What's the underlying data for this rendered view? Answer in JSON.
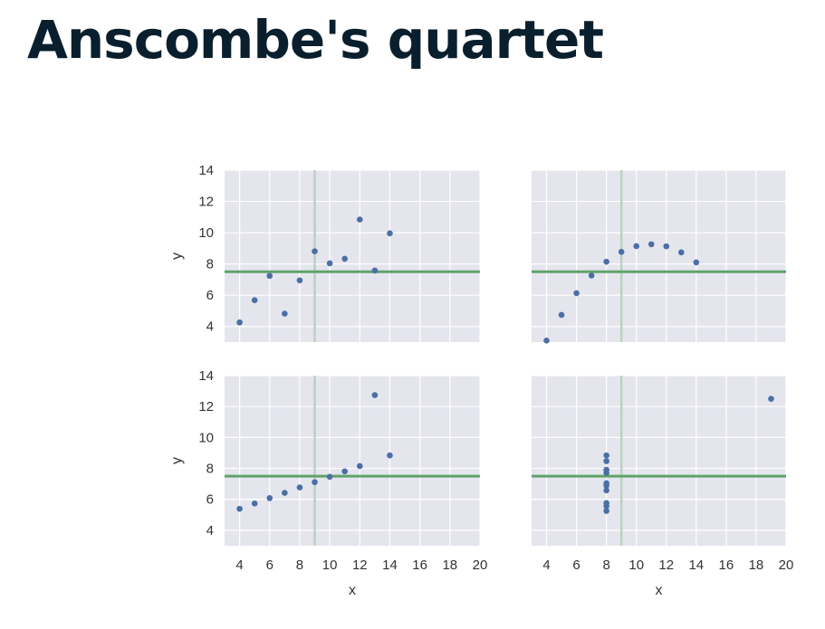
{
  "title": "Anscombe's quartet",
  "colors": {
    "panel_bg": "#e5e5ee",
    "grid": "#ffffff",
    "point": "#4a6fa5",
    "mean_y_line": "#5fa36a",
    "mean_x_line": "#b9d3bf",
    "title": "#0a1f2e",
    "tick_text": "#333333"
  },
  "chart_data": [
    {
      "type": "scatter",
      "panel": "top-left",
      "x": [
        10,
        8,
        13,
        9,
        11,
        14,
        6,
        4,
        12,
        7,
        5
      ],
      "y": [
        8.04,
        6.95,
        7.58,
        8.81,
        8.33,
        9.96,
        7.24,
        4.26,
        10.84,
        4.82,
        5.68
      ],
      "mean_x": 9,
      "mean_y": 7.5,
      "xlim": [
        3,
        20
      ],
      "ylim": [
        3,
        14
      ],
      "xticks": [],
      "yticks": [
        4,
        6,
        8,
        10,
        12,
        14
      ],
      "xlabel": "",
      "ylabel": "y",
      "grid": true
    },
    {
      "type": "scatter",
      "panel": "top-right",
      "x": [
        10,
        8,
        13,
        9,
        11,
        14,
        6,
        4,
        12,
        7,
        5
      ],
      "y": [
        9.14,
        8.14,
        8.74,
        8.77,
        9.26,
        8.1,
        6.13,
        3.1,
        9.13,
        7.26,
        4.74
      ],
      "mean_x": 9,
      "mean_y": 7.5,
      "xlim": [
        3,
        20
      ],
      "ylim": [
        3,
        14
      ],
      "xticks": [],
      "yticks": [],
      "xlabel": "",
      "ylabel": "",
      "grid": true
    },
    {
      "type": "scatter",
      "panel": "bottom-left",
      "x": [
        10,
        8,
        13,
        9,
        11,
        14,
        6,
        4,
        12,
        7,
        5
      ],
      "y": [
        7.46,
        6.77,
        12.74,
        7.11,
        7.81,
        8.84,
        6.08,
        5.39,
        8.15,
        6.42,
        5.73
      ],
      "mean_x": 9,
      "mean_y": 7.5,
      "xlim": [
        3,
        20
      ],
      "ylim": [
        3,
        14
      ],
      "xticks": [
        4,
        6,
        8,
        10,
        12,
        14,
        16,
        18,
        20
      ],
      "yticks": [
        4,
        6,
        8,
        10,
        12,
        14
      ],
      "xlabel": "x",
      "ylabel": "y",
      "grid": true
    },
    {
      "type": "scatter",
      "panel": "bottom-right",
      "x": [
        8,
        8,
        8,
        8,
        8,
        8,
        8,
        19,
        8,
        8,
        8
      ],
      "y": [
        6.58,
        5.76,
        7.71,
        8.84,
        8.47,
        7.04,
        5.25,
        12.5,
        5.56,
        7.91,
        6.89
      ],
      "mean_x": 9,
      "mean_y": 7.5,
      "xlim": [
        3,
        20
      ],
      "ylim": [
        3,
        14
      ],
      "xticks": [
        4,
        6,
        8,
        10,
        12,
        14,
        16,
        18,
        20
      ],
      "yticks": [],
      "xlabel": "x",
      "ylabel": "",
      "grid": true
    }
  ]
}
